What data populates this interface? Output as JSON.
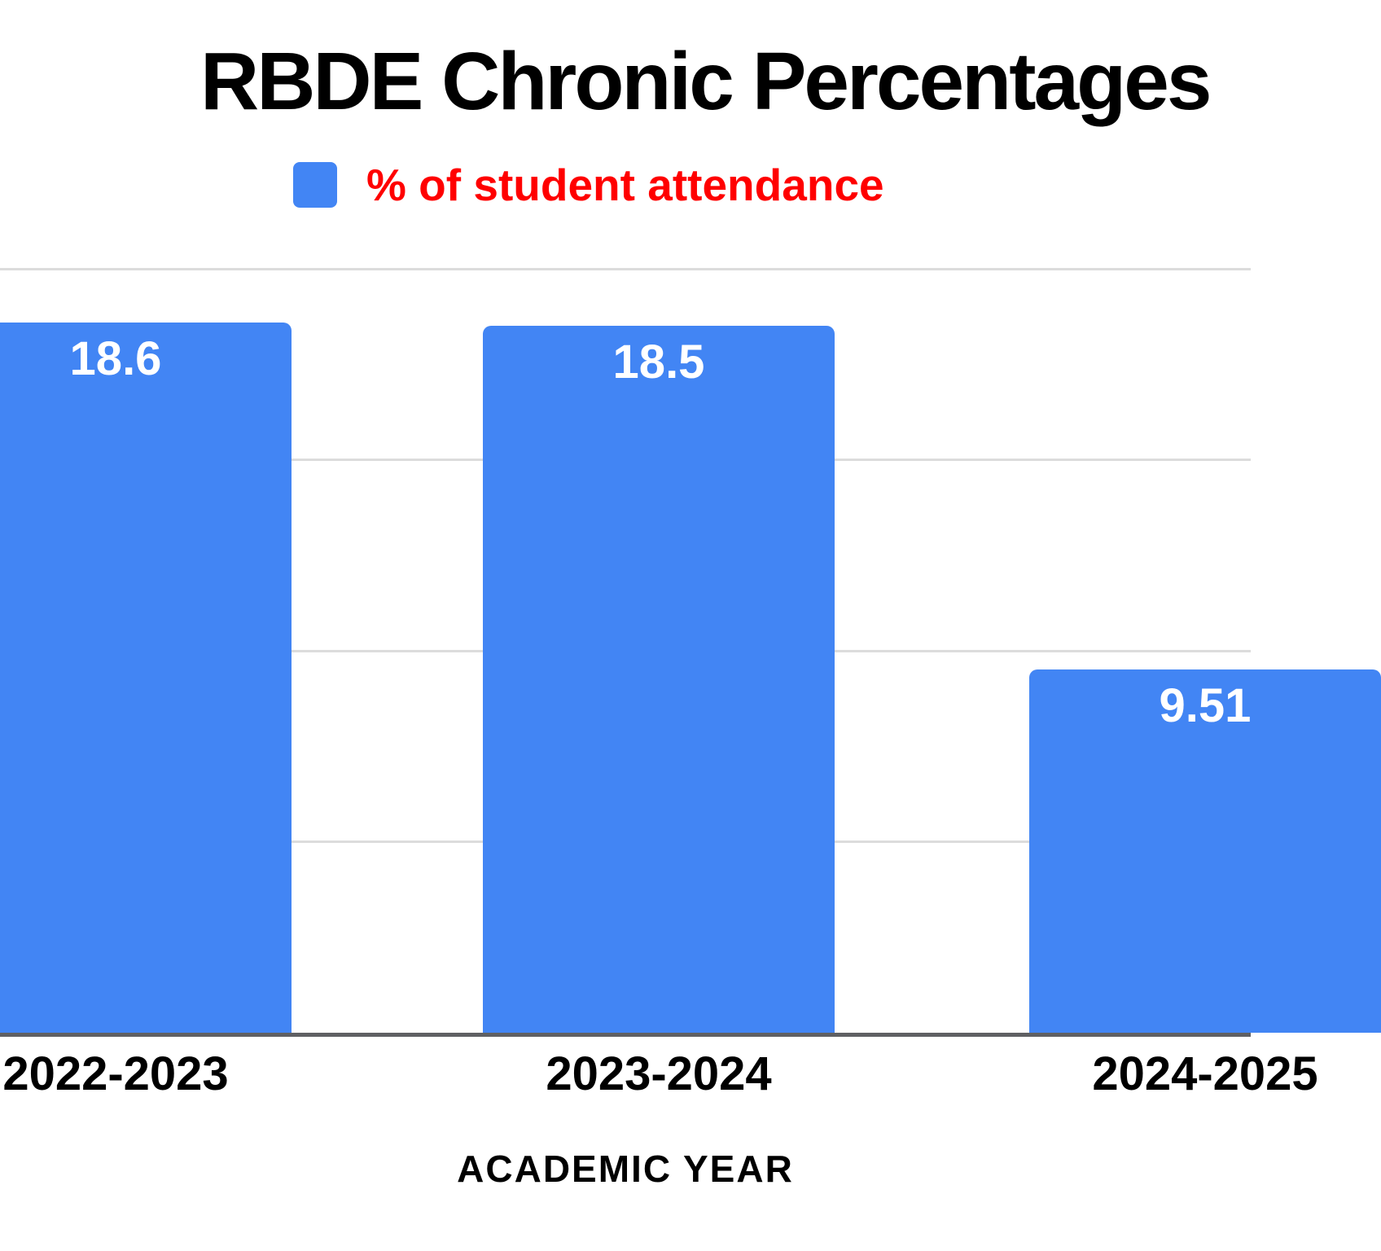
{
  "chart_data": {
    "type": "bar",
    "title": "RBDE Chronic Percentages",
    "title_color": "#000000",
    "legend": {
      "label": "% of student attendance",
      "label_color": "#ff0000",
      "swatch_color": "#4285f4",
      "position": "top"
    },
    "categories": [
      "2022-2023",
      "2023-2024",
      "2024-2025"
    ],
    "series": [
      {
        "name": "% of student attendance",
        "color": "#4285f4",
        "values": [
          18.6,
          18.5,
          9.51
        ],
        "value_labels": [
          "18.6",
          "18.5",
          "9.51"
        ]
      }
    ],
    "xlabel": "ACADEMIC YEAR",
    "ylabel": "",
    "ylim": [
      0,
      20
    ],
    "grid": {
      "visible": true,
      "values": [
        5,
        10,
        15,
        20
      ],
      "color": "#dcdcdc"
    },
    "axis_line_color": "#5f6063",
    "value_label_color": "#ffffff",
    "tick_label_color": "#000000",
    "xlabel_color": "#000000",
    "background_color": "#ffffff"
  }
}
